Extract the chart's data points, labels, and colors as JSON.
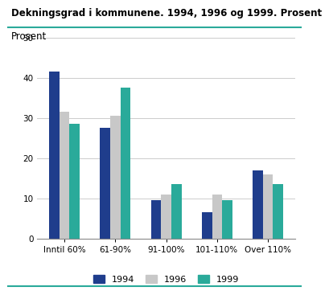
{
  "title": "Dekningsgrad i kommunene. 1994, 1996 og 1999. Prosent",
  "ylabel": "Prosent",
  "categories": [
    "Inntil 60%",
    "61-90%",
    "91-100%",
    "101-110%",
    "Over 110%"
  ],
  "series": {
    "1994": [
      41.5,
      27.5,
      9.5,
      6.5,
      17.0
    ],
    "1996": [
      31.5,
      30.5,
      11.0,
      11.0,
      16.0
    ],
    "1999": [
      28.5,
      37.5,
      13.5,
      9.5,
      13.5
    ]
  },
  "colors": {
    "1994": "#1f3d8c",
    "1996": "#c8c8c8",
    "1999": "#2aaa9a"
  },
  "ylim": [
    0,
    50
  ],
  "yticks": [
    0,
    10,
    20,
    30,
    40,
    50
  ],
  "background_color": "#ffffff",
  "title_fontsize": 8.5,
  "ylabel_fontsize": 8.5,
  "tick_fontsize": 7.5,
  "legend_fontsize": 8,
  "bar_width": 0.2,
  "title_line_color": "#2aaa9a",
  "bottom_line_color": "#2aaa9a"
}
